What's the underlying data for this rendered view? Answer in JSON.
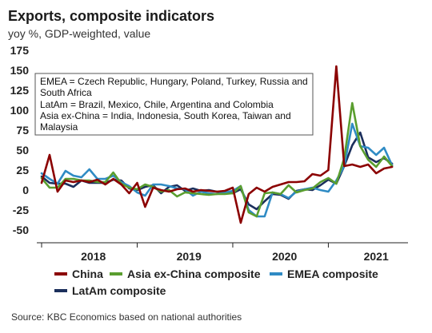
{
  "chart_data": {
    "type": "line",
    "title": "Exports, composite indicators",
    "subtitle": "yoy %, GDP-weighted, value",
    "ylim": [
      -50,
      175
    ],
    "yticks": [
      -50,
      -25,
      0,
      25,
      50,
      75,
      100,
      125,
      150,
      175
    ],
    "xlim": [
      0,
      46
    ],
    "x_tick_labels": [
      {
        "label": "2018",
        "pos": 6.5
      },
      {
        "label": "2019",
        "pos": 18.5
      },
      {
        "label": "2020",
        "pos": 30.5
      },
      {
        "label": "2021",
        "pos": 42
      }
    ],
    "x_tick_marks": [
      0,
      12,
      24,
      36
    ],
    "grid": "none",
    "annotation": [
      "EMEA = Czech Republic, Hungary, Poland, Turkey, Russia and",
      "South Africa",
      "LatAm = Brazil, Mexico, Chile, Argentina and Colombia",
      "Asia ex-China = India, Indonesia, South Korea, Taiwan and",
      "Malaysia"
    ],
    "legend_position": "bottom",
    "series": [
      {
        "name": "China",
        "color": "#8b0000",
        "values": [
          9,
          44,
          -2,
          12,
          10,
          12,
          10,
          13,
          7,
          14,
          7,
          -4,
          9,
          -21,
          3,
          0,
          -2,
          1,
          2,
          -2,
          0,
          -1,
          -2,
          -1,
          3,
          -41,
          -5,
          3,
          -2,
          4,
          7,
          10,
          10,
          11,
          20,
          18,
          25,
          155,
          30,
          32,
          29,
          32,
          21,
          27,
          29
        ]
      },
      {
        "name": "Asia ex-China composite",
        "color": "#5a9e2f",
        "values": [
          15,
          3,
          3,
          14,
          14,
          12,
          12,
          10,
          10,
          22,
          8,
          3,
          1,
          7,
          4,
          -2,
          0,
          -8,
          -3,
          -4,
          -5,
          -6,
          -5,
          -5,
          -4,
          5,
          -28,
          -33,
          -4,
          -3,
          -5,
          6,
          -3,
          0,
          2,
          10,
          15,
          8,
          40,
          109,
          55,
          38,
          29,
          42,
          30
        ]
      },
      {
        "name": "EMEA composite",
        "color": "#2f8bc4",
        "values": [
          21,
          14,
          8,
          24,
          18,
          16,
          26,
          14,
          14,
          18,
          10,
          5,
          -3,
          -7,
          7,
          7,
          5,
          2,
          1,
          -7,
          -2,
          -4,
          -5,
          -3,
          -1,
          5,
          -25,
          -33,
          -33,
          -3,
          -5,
          -10,
          -2,
          1,
          3,
          0,
          -2,
          12,
          30,
          83,
          55,
          53,
          44,
          53,
          31
        ]
      },
      {
        "name": "LatAm composite",
        "color": "#1b2f5c",
        "values": [
          17,
          9,
          8,
          8,
          4,
          12,
          9,
          9,
          9,
          13,
          12,
          2,
          0,
          4,
          6,
          -4,
          4,
          6,
          -1,
          2,
          -1,
          0,
          -2,
          -3,
          -4,
          1,
          -18,
          -24,
          -14,
          -5,
          -6,
          -11,
          -1,
          1,
          0,
          6,
          13,
          8,
          30,
          56,
          72,
          41,
          35,
          40,
          33
        ]
      }
    ]
  },
  "source": "Source: KBC Economics based on national authorities"
}
